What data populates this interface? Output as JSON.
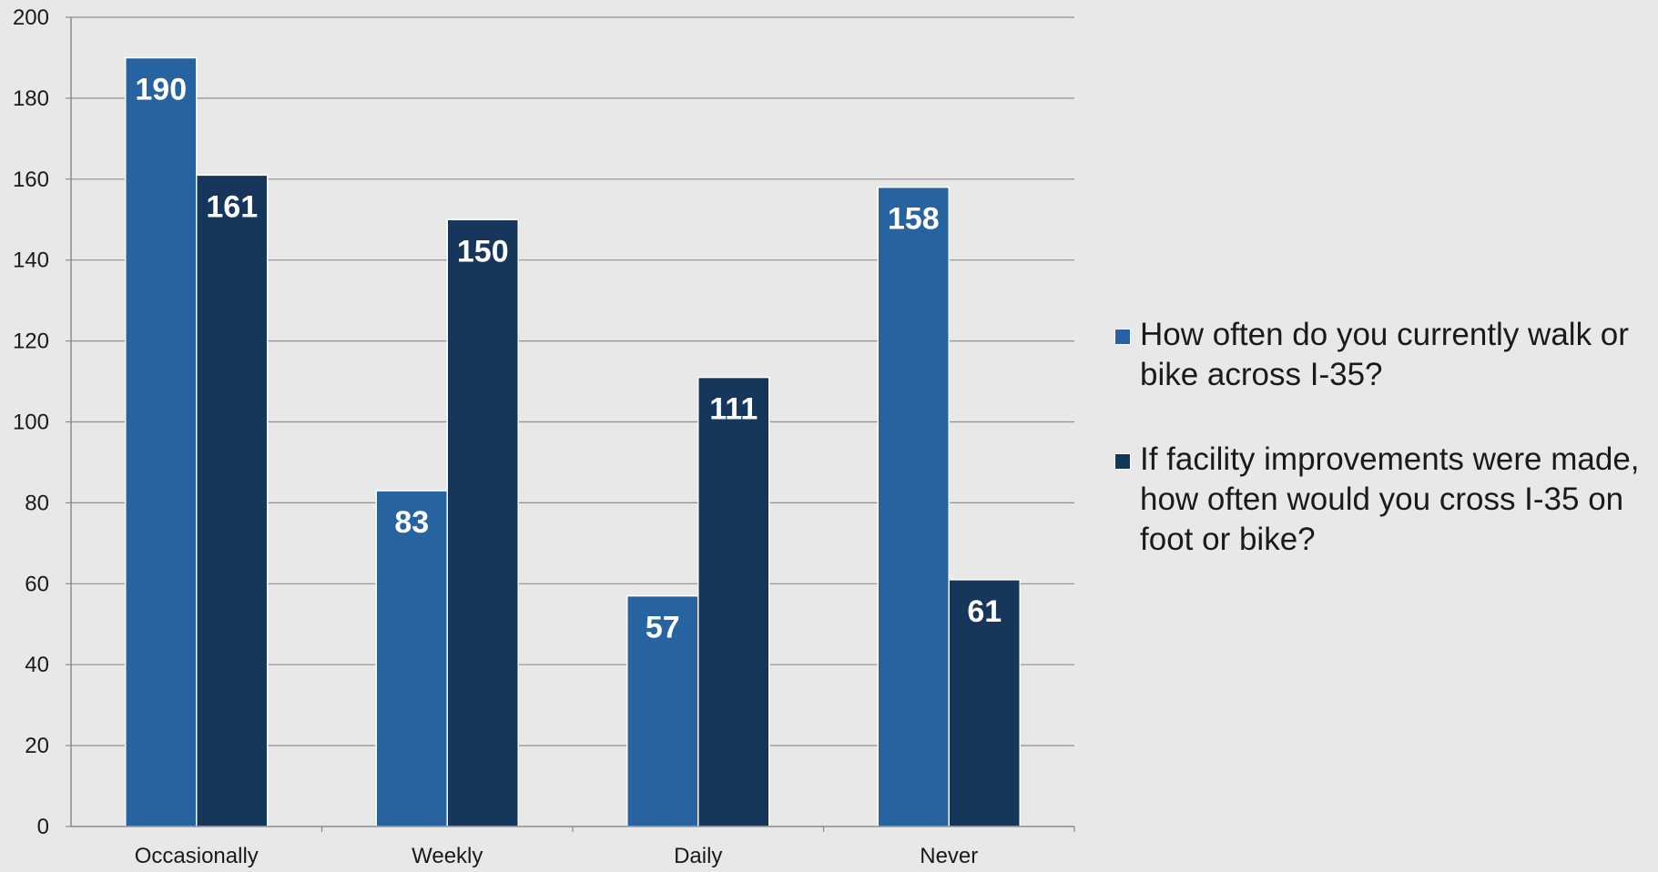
{
  "chart_data": {
    "type": "bar",
    "categories": [
      "Occasionally",
      "Weekly",
      "Daily",
      "Never"
    ],
    "series": [
      {
        "name": "How often do you currently walk or bike across I-35?",
        "values": [
          190,
          83,
          57,
          158
        ],
        "color": "#2763a0"
      },
      {
        "name": "If facility improvements were made, how often would you cross I-35 on foot or bike?",
        "values": [
          161,
          150,
          111,
          61
        ],
        "color": "#16365b"
      }
    ],
    "ylim": [
      0,
      200
    ],
    "yticks": [
      0,
      20,
      40,
      60,
      80,
      100,
      120,
      140,
      160,
      180,
      200
    ],
    "title": "",
    "xlabel": "",
    "ylabel": "",
    "grid": true,
    "legend_position": "right",
    "data_labels": true
  }
}
